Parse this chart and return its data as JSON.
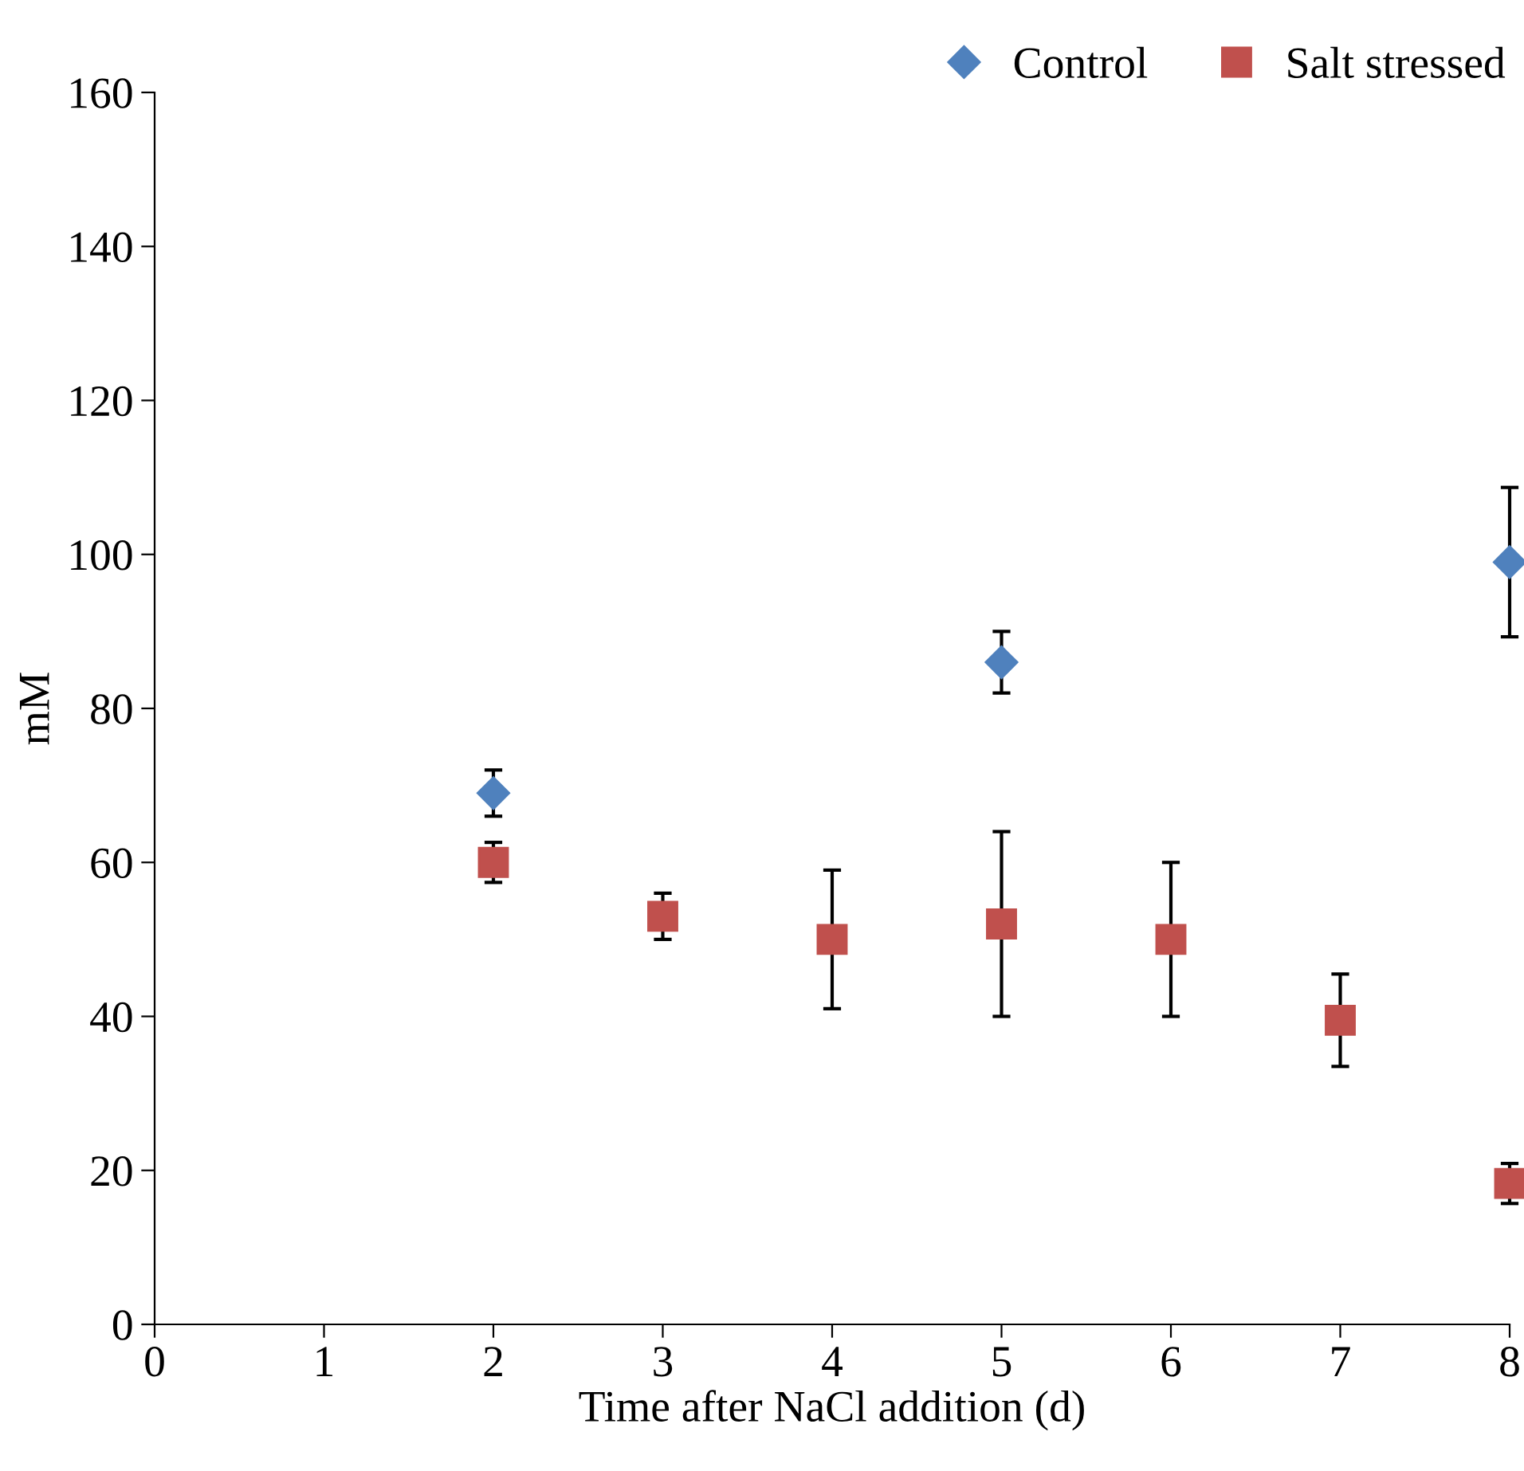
{
  "chart_data": {
    "type": "scatter",
    "xlabel": "Time after NaCl addition (d)",
    "ylabel": "mM",
    "xlim": [
      0,
      8
    ],
    "xticks": [
      0,
      1,
      2,
      3,
      4,
      5,
      6,
      7,
      8
    ],
    "ylim": [
      0,
      160
    ],
    "yticks": [
      0,
      20,
      40,
      60,
      80,
      100,
      120,
      140,
      160
    ],
    "grid": false,
    "legend": "top right",
    "series": [
      {
        "name": "Control",
        "color": "#4f81bd",
        "marker": "diamond",
        "x": [
          2,
          5,
          8
        ],
        "values": [
          69,
          86,
          99
        ],
        "errors": [
          3,
          4,
          9.7
        ]
      },
      {
        "name": "Salt stressed",
        "color": "#c0504d",
        "marker": "square",
        "x": [
          2,
          3,
          4,
          5,
          6,
          7,
          8
        ],
        "values": [
          60,
          53,
          50,
          52,
          50,
          39.5,
          18.3
        ],
        "errors": [
          2.6,
          3,
          9,
          12,
          10,
          6,
          2.6
        ]
      }
    ]
  }
}
